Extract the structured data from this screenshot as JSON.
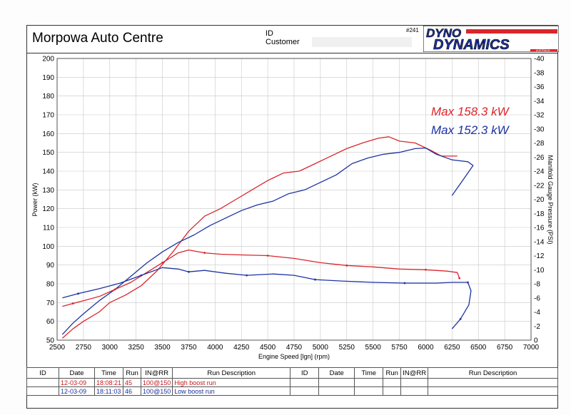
{
  "header": {
    "title": "Morpowa Auto Centre",
    "id_label": "ID",
    "customer_label": "Customer",
    "run_number": "#241",
    "logo_text_top": "DYNO",
    "logo_text_bottom": "DYNAMICS",
    "logo_sub": "AUSTRALIA"
  },
  "colors": {
    "high_boost": "#d9262c",
    "low_boost": "#1e33a0",
    "grid": "#c8c8c8"
  },
  "chart_data": {
    "type": "line",
    "xlabel": "Engine Speed [lgn] (rpm)",
    "ylabel": "Power (kW)",
    "y2label": "Manifold Gauge Pressure (PSI)",
    "xlim": [
      2500,
      7000
    ],
    "ylim": [
      50,
      200
    ],
    "y2lim": [
      0,
      40
    ],
    "x_ticks": [
      2500,
      2750,
      3000,
      3250,
      3500,
      3750,
      4000,
      4250,
      4500,
      4750,
      5000,
      5250,
      5500,
      5750,
      6000,
      6250,
      6500,
      6750,
      7000
    ],
    "y_ticks": [
      50,
      60,
      70,
      80,
      90,
      100,
      110,
      120,
      130,
      140,
      150,
      160,
      170,
      180,
      190,
      200
    ],
    "y2_ticks": [
      0,
      2,
      4,
      6,
      8,
      10,
      12,
      14,
      16,
      18,
      20,
      22,
      24,
      26,
      28,
      30,
      32,
      34,
      36,
      38,
      40
    ],
    "y2_tick_labels": [
      "0",
      "-2",
      "-4",
      "-6",
      "-8",
      "-10",
      "-12",
      "-14",
      "-16",
      "-18",
      "-20",
      "-22",
      "-24",
      "-26",
      "-28",
      "-30",
      "-32",
      "-34",
      "-36",
      "-38",
      "-40"
    ],
    "grid": true,
    "annotations": [
      {
        "text": "Max 158.3 kW",
        "series": "high"
      },
      {
        "text": "Max 152.3 kW",
        "series": "low"
      }
    ],
    "series": [
      {
        "key": "high_power",
        "axis": "left",
        "color_key": "high_boost",
        "x": [
          2550,
          2650,
          2750,
          2900,
          3000,
          3150,
          3300,
          3450,
          3600,
          3750,
          3900,
          4050,
          4200,
          4350,
          4500,
          4650,
          4800,
          4950,
          5100,
          5250,
          5400,
          5550,
          5650,
          5750,
          5900,
          6050,
          6150,
          6300
        ],
        "y": [
          51,
          56,
          60,
          65,
          70,
          74,
          79,
          87,
          97,
          108,
          116,
          120,
          125,
          130,
          135,
          139,
          140,
          144,
          148,
          152,
          155,
          157.5,
          158.3,
          156,
          155,
          151,
          148,
          148
        ]
      },
      {
        "key": "low_power",
        "axis": "left",
        "color_key": "low_boost",
        "x": [
          2550,
          2650,
          2750,
          2900,
          3050,
          3200,
          3350,
          3500,
          3650,
          3800,
          3950,
          4100,
          4250,
          4400,
          4550,
          4700,
          4850,
          5000,
          5150,
          5300,
          5450,
          5600,
          5750,
          5900,
          6000,
          6100,
          6250,
          6400,
          6450,
          6350,
          6250
        ],
        "y": [
          53,
          59,
          64,
          71,
          77,
          84,
          91,
          97,
          102,
          106,
          111,
          115,
          119,
          122,
          124,
          128,
          130,
          134,
          138,
          144,
          147,
          149,
          150,
          152,
          152.3,
          149,
          146,
          145,
          143,
          135,
          127
        ]
      },
      {
        "key": "high_boost_pressure",
        "axis": "right",
        "color_key": "high_boost",
        "x": [
          2550,
          2650,
          2750,
          2900,
          3050,
          3200,
          3350,
          3500,
          3650,
          3750,
          3900,
          4050,
          4250,
          4500,
          4750,
          5000,
          5250,
          5500,
          5750,
          6000,
          6200,
          6300,
          6320
        ],
        "y": [
          4.8,
          5.2,
          5.6,
          6.2,
          7.2,
          8.2,
          9.6,
          11,
          12.4,
          12.8,
          12.4,
          12.2,
          12.1,
          12.0,
          11.6,
          11.0,
          10.6,
          10.4,
          10.1,
          10.0,
          9.8,
          9.6,
          8.8
        ]
      },
      {
        "key": "low_boost_pressure",
        "axis": "right",
        "color_key": "low_boost",
        "x": [
          2550,
          2700,
          2900,
          3100,
          3300,
          3500,
          3650,
          3750,
          3900,
          4100,
          4300,
          4550,
          4750,
          4950,
          5200,
          5500,
          5800,
          6100,
          6250,
          6400,
          6430,
          6410,
          6330,
          6250
        ],
        "y": [
          6,
          6.6,
          7.3,
          8.1,
          9.2,
          10.3,
          10.1,
          9.7,
          9.9,
          9.5,
          9.2,
          9.4,
          9.2,
          8.6,
          8.4,
          8.2,
          8.1,
          8.1,
          8.2,
          8.2,
          7.0,
          5.0,
          3.0,
          1.6
        ]
      }
    ]
  },
  "table": {
    "headers_left": [
      "ID",
      "Date",
      "Time",
      "Run",
      "IN@RR",
      "Run Description"
    ],
    "headers_right": [
      "ID",
      "Date",
      "Time",
      "Run",
      "IN@RR",
      "Run Description"
    ],
    "rows": [
      {
        "id": "",
        "date": "12-03-09",
        "time": "18:08:21",
        "run": "45",
        "inrr": "100@150",
        "desc": "High boost run",
        "color": "red"
      },
      {
        "id": "",
        "date": "12-03-09",
        "time": "18:11:03",
        "run": "46",
        "inrr": "100@150",
        "desc": "Low boost run",
        "color": "blue"
      }
    ]
  }
}
